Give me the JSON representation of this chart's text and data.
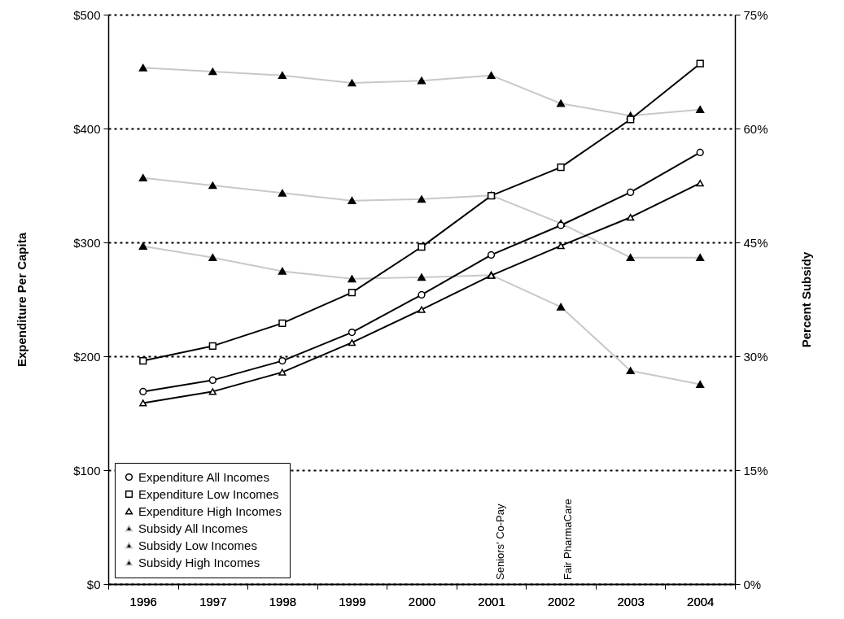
{
  "chart_data": {
    "type": "line",
    "xlabel": null,
    "ylabel": "Expenditure Per Capita",
    "y2label": "Percent Subsidy",
    "categories": [
      "1996",
      "1997",
      "1998",
      "1999",
      "2000",
      "2001",
      "2002",
      "2003",
      "2004"
    ],
    "series": [
      {
        "name": "Expenditure All Incomes",
        "color": "#000000",
        "marker": "circle",
        "values": [
          169,
          179,
          196,
          221,
          254,
          289,
          315,
          344,
          379
        ]
      },
      {
        "name": "Expenditure Low Incomes",
        "color": "#000000",
        "marker": "square",
        "values": [
          196,
          209,
          229,
          256,
          296,
          341,
          366,
          408,
          457
        ]
      },
      {
        "name": "Expenditure High Incomes",
        "color": "#000000",
        "marker": "triangle",
        "values": [
          159,
          169,
          186,
          212,
          241,
          271,
          297,
          322,
          352
        ]
      },
      {
        "name": "Subsidy All Incomes",
        "color": "#c8c8c8",
        "marker": "triangle",
        "axis": "y2",
        "values": [
          53.5,
          52.5,
          51.5,
          50.5,
          50.7,
          51.2,
          47.5,
          43,
          43
        ]
      },
      {
        "name": "Subsidy Low Incomes",
        "color": "#c8c8c8",
        "marker": "triangle",
        "axis": "y2",
        "values": [
          68,
          67.5,
          67,
          66,
          66.3,
          67,
          63.3,
          61.7,
          62.5
        ]
      },
      {
        "name": "Subsidy High Incomes",
        "color": "#c8c8c8",
        "marker": "triangle",
        "axis": "y2",
        "values": [
          44.5,
          43,
          41.2,
          40.2,
          40.4,
          40.7,
          36.5,
          28.1,
          26.3
        ]
      }
    ],
    "ylim": [
      0,
      500
    ],
    "yticks": [
      {
        "value": 0,
        "label": "$0"
      },
      {
        "value": 100,
        "label": "$100"
      },
      {
        "value": 200,
        "label": "$200"
      },
      {
        "value": 300,
        "label": "$300"
      },
      {
        "value": 400,
        "label": "$400"
      },
      {
        "value": 500,
        "label": "$500"
      }
    ],
    "y2lim": [
      0,
      75
    ],
    "y2ticks": [
      {
        "value": 0,
        "label": "0%"
      },
      {
        "value": 15,
        "label": "15%"
      },
      {
        "value": 30,
        "label": "30%"
      },
      {
        "value": 45,
        "label": "45%"
      },
      {
        "value": 60,
        "label": "60%"
      },
      {
        "value": 75,
        "label": "75%"
      }
    ],
    "grid": "y",
    "legend": "bottom left",
    "line_style": "solid",
    "annotations": [
      "Seniors' Co-Pay",
      "Fair PharmaCare"
    ]
  }
}
